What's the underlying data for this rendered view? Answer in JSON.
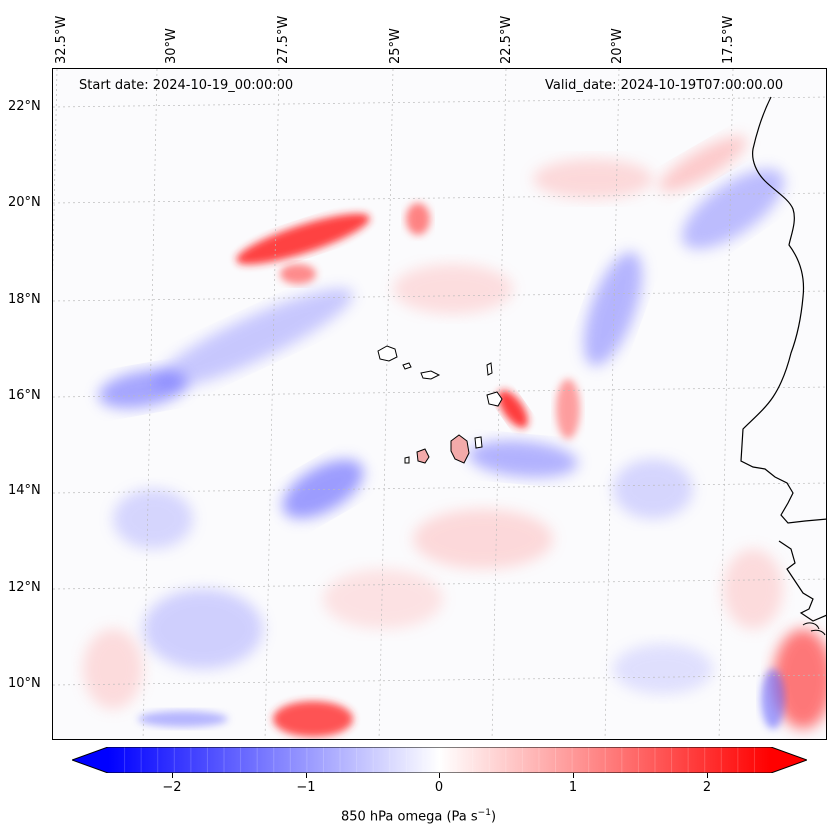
{
  "map": {
    "start_date": "Start date: 2024-10-19_00:00:00",
    "valid_date": "Valid_date: 2024-10-19T07:00:00.00",
    "lon_labels": [
      "32.5°W",
      "30°W",
      "27.5°W",
      "25°W",
      "22.5°W",
      "20°W",
      "17.5°W"
    ],
    "lat_labels": [
      "22°N",
      "20°N",
      "18°N",
      "16°N",
      "14°N",
      "12°N",
      "10°N"
    ],
    "extent": {
      "lon_min": -32.7,
      "lon_max": -15.1,
      "lat_min": 8.8,
      "lat_max": 22.8
    },
    "projection": "Lambert conformal",
    "gridlines": true,
    "coastline_color": "#000000"
  },
  "colorbar": {
    "ticks": [
      "−2",
      "−1",
      "0",
      "1",
      "2"
    ],
    "tick_values": [
      -2,
      -1,
      0,
      1,
      2
    ],
    "range": [
      -2.6,
      2.6
    ],
    "label": "850 hPa omega (Pa s",
    "label_sup": "−1",
    "label_end": ")",
    "colormap": "bwr",
    "min_color": "#0000ff",
    "mid_color": "#ffffff",
    "max_color": "#ff0000",
    "extend": "both"
  }
}
